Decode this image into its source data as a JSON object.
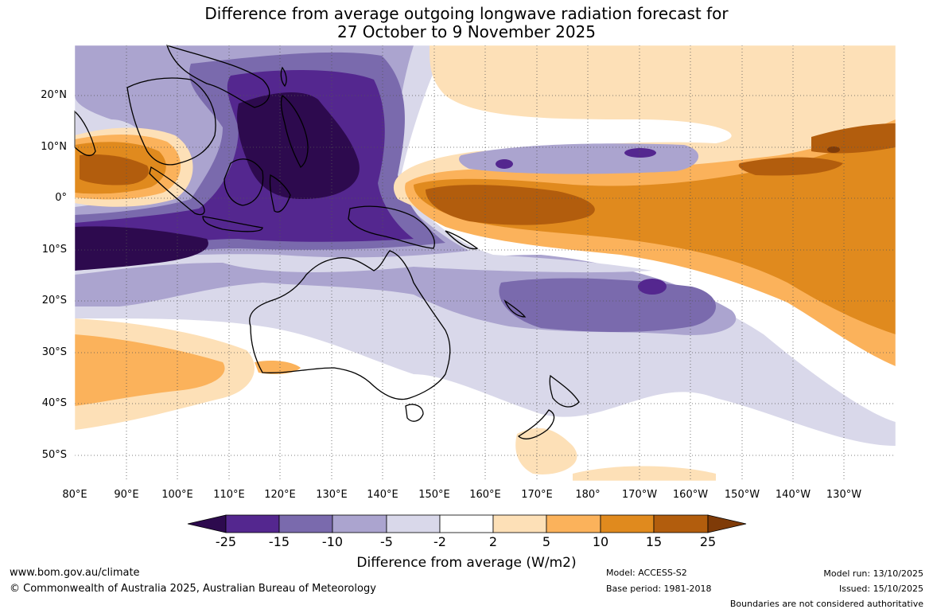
{
  "title_line1": "Difference from average outgoing longwave radiation forecast for",
  "title_line2": "27 October to 9 November 2025",
  "lat_labels": [
    "20°N",
    "10°N",
    "0°",
    "10°S",
    "20°S",
    "30°S",
    "40°S",
    "50°S"
  ],
  "lon_labels": [
    "80°E",
    "90°E",
    "100°E",
    "110°E",
    "120°E",
    "130°E",
    "140°E",
    "150°E",
    "160°E",
    "170°E",
    "180°",
    "170°W",
    "160°W",
    "150°W",
    "140°W",
    "130°W"
  ],
  "colorbar": {
    "ticks": [
      "-25",
      "-15",
      "-10",
      "-5",
      "-2",
      "2",
      "5",
      "10",
      "15",
      "25"
    ],
    "colors": [
      "#2d0a4e",
      "#54278f",
      "#7a6aad",
      "#aba4cf",
      "#d9d8ea",
      "#ffffff",
      "#fde0b7",
      "#fbb25b",
      "#e08a1e",
      "#b25d0d",
      "#7f3b08"
    ],
    "title": "Difference from average (W/m2)"
  },
  "footer": {
    "website": "www.bom.gov.au/climate",
    "copyright": "© Commonwealth of Australia 2025, Australian Bureau of Meteorology",
    "model": "Model: ACCESS-S2",
    "base_period": "Base period: 1981-2018",
    "model_run": "Model run: 13/10/2025",
    "issued": "Issued: 15/10/2025",
    "disclaimer": "Boundaries are not considered authoritative"
  }
}
